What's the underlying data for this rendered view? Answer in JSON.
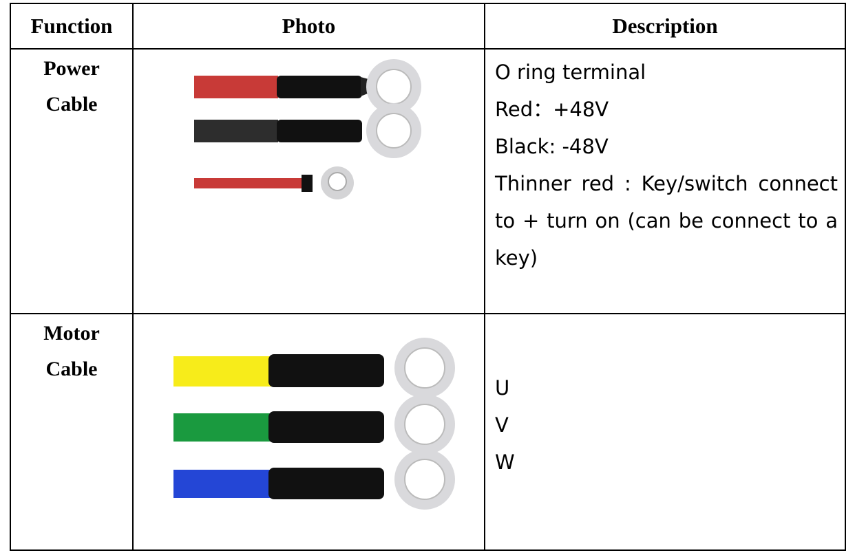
{
  "table": {
    "header": [
      "Function",
      "Photo",
      "Description"
    ],
    "rows": [
      {
        "function": "Power Cable",
        "description": [
          "O ring terminal",
          "Red：+48V",
          "Black: -48V",
          "Thinner red : Key/switch connect to + turn on (can be connect to a key)"
        ]
      },
      {
        "function": "Motor Cable",
        "description": [
          "U",
          "V",
          "W"
        ]
      }
    ]
  }
}
